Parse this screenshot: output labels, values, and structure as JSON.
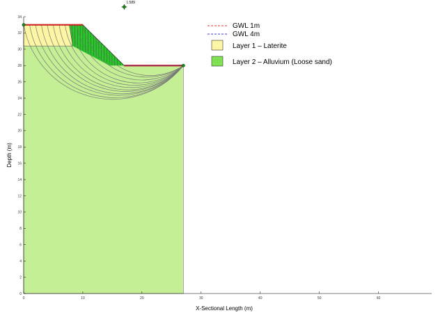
{
  "chart_data": {
    "type": "slope-stability-section",
    "xlabel": "X-Sectional Length (m)",
    "ylabel": "Depth (m)",
    "xlim": [
      0,
      69
    ],
    "ylim": [
      0,
      34
    ],
    "x_ticks": [
      0,
      10,
      20,
      30,
      40,
      50,
      60
    ],
    "y_ticks": [
      0,
      2,
      4,
      6,
      8,
      10,
      12,
      14,
      16,
      18,
      20,
      22,
      24,
      26,
      28,
      30,
      32,
      34
    ],
    "grid": false,
    "legend_position": "top-center",
    "legend": [
      {
        "label": "GWL 1m",
        "style": "dashed-line",
        "color": "#e03030"
      },
      {
        "label": "GWL 4m",
        "style": "dashed-line",
        "color": "#3a3ad0"
      },
      {
        "label": "Layer 1 – Laterite",
        "style": "box",
        "color": "#fbf5a4"
      },
      {
        "label": "Layer 2 – Alluvium (Loose sand)",
        "style": "box",
        "color": "#7fe255"
      }
    ],
    "profile": {
      "ground_surface": [
        [
          0,
          33
        ],
        [
          10,
          33
        ],
        [
          17,
          28
        ],
        [
          27,
          28
        ]
      ],
      "domain_bottom": 0,
      "domain_right": 27
    },
    "layer1_laterite": {
      "polygon": [
        [
          0,
          33
        ],
        [
          7.7,
          33
        ],
        [
          8.3,
          30.4
        ],
        [
          0,
          30.4
        ]
      ],
      "color": "#fbf5a4"
    },
    "layer2_alluvium": {
      "color": "#c4ef95",
      "slope_fill_color": "#2cc42c"
    },
    "gwl_lines": [
      {
        "label": "GWL 1m",
        "points": [
          [
            0,
            33
          ],
          [
            10,
            33
          ]
        ],
        "color": "#e03030"
      },
      {
        "label": "GWL 4m",
        "points": [
          [
            17,
            28
          ],
          [
            27,
            28
          ]
        ],
        "color": "#3a3ad0"
      }
    ],
    "slip_circles": {
      "color": "#777777",
      "count": 12,
      "exit_x": 27,
      "exit_y": 28,
      "entries": [
        [
          0,
          33
        ],
        [
          1,
          33
        ],
        [
          2,
          33
        ],
        [
          3,
          33
        ],
        [
          4,
          33
        ],
        [
          5,
          33
        ],
        [
          6,
          33
        ],
        [
          7,
          33
        ],
        [
          8,
          33
        ],
        [
          9,
          33
        ],
        [
          10,
          33
        ],
        [
          12,
          31.6
        ]
      ],
      "sagitta": [
        6.5,
        6.3,
        6.0,
        5.8,
        5.5,
        5.3,
        5.0,
        4.7,
        4.4,
        4.0,
        3.6,
        2.8
      ]
    },
    "critical_center": {
      "x": 17,
      "y": 35.2
    },
    "fos_label": "1.589",
    "endpoint_markers": [
      [
        0,
        33
      ],
      [
        27,
        28
      ]
    ]
  }
}
